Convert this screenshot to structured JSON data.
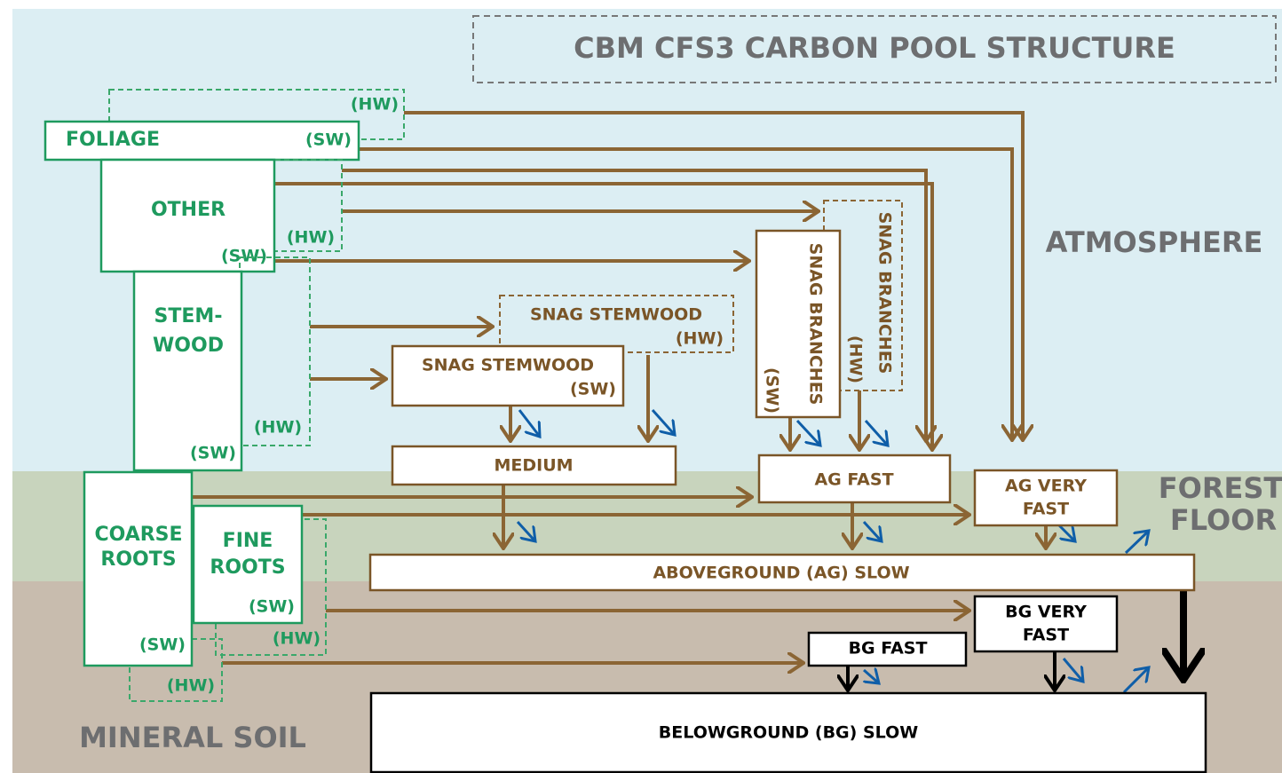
{
  "title": "CBM CFS3 CARBON POOL STRUCTURE",
  "zones": {
    "atmosphere": "ATMOSPHERE",
    "forest_floor": [
      "FOREST",
      "FLOOR"
    ],
    "mineral_soil": "MINERAL SOIL"
  },
  "biomass": {
    "foliage": {
      "label": [
        "FOLIAGE"
      ],
      "sw": "(SW)",
      "hw": "(HW)"
    },
    "other": {
      "label": [
        "OTHER"
      ],
      "sw": "(SW)",
      "hw": "(HW)"
    },
    "stemwood": {
      "label": [
        "STEM-",
        "WOOD"
      ],
      "sw": "(SW)",
      "hw": "(HW)"
    },
    "coarse_roots": {
      "label": [
        "COARSE",
        "ROOTS"
      ],
      "sw": "(SW)",
      "hw": "(HW)"
    },
    "fine_roots": {
      "label": [
        "FINE",
        "ROOTS"
      ],
      "sw": "(SW)",
      "hw": "(HW)"
    }
  },
  "dom": {
    "snag_stemwood_hw": {
      "label": [
        "SNAG STEMWOOD"
      ],
      "tag": "(HW)"
    },
    "snag_stemwood_sw": {
      "label": [
        "SNAG STEMWOOD"
      ],
      "tag": "(SW)"
    },
    "snag_branches_sw": {
      "label": [
        "SNAG BRANCHES"
      ],
      "tag": "(SW)"
    },
    "snag_branches_hw": {
      "label": [
        "SNAG BRANCHES"
      ],
      "tag": "(HW)"
    },
    "medium": {
      "label": [
        "MEDIUM"
      ]
    },
    "ag_fast": {
      "label": [
        "AG FAST"
      ]
    },
    "ag_very_fast": {
      "label": [
        "AG VERY",
        "FAST"
      ]
    },
    "ag_slow": {
      "label": [
        "ABOVEGROUND (AG) SLOW"
      ]
    },
    "bg_very_fast": {
      "label": [
        "BG VERY",
        "FAST"
      ]
    },
    "bg_fast": {
      "label": [
        "BG FAST"
      ]
    },
    "bg_slow": {
      "label": [
        "BELOWGROUND (BG) SLOW"
      ]
    }
  }
}
